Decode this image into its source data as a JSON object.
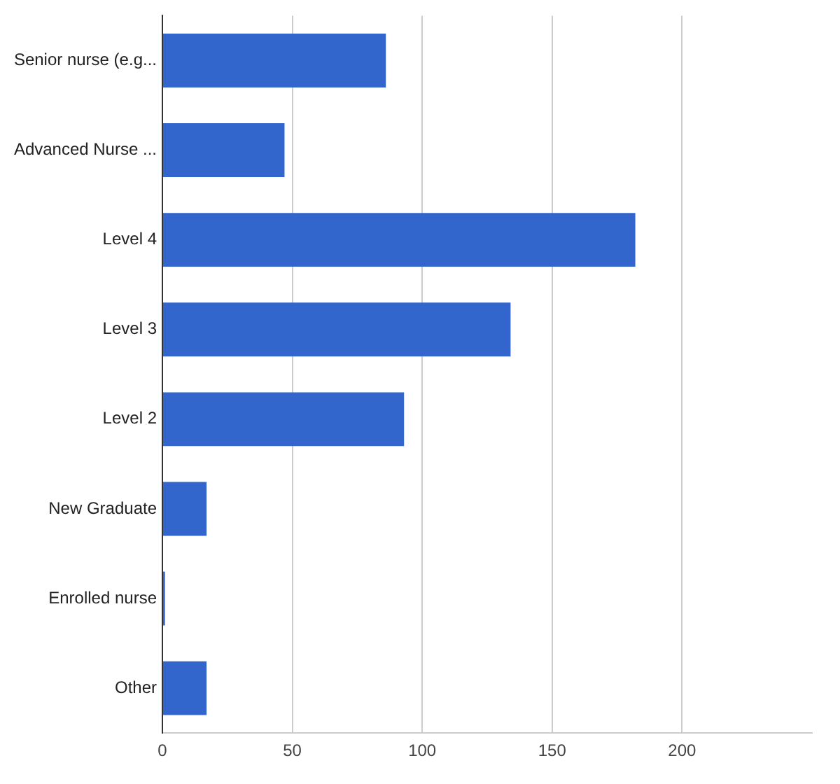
{
  "chart_data": {
    "type": "bar",
    "orientation": "horizontal",
    "categories": [
      "Senior nurse (e.g...",
      "Advanced Nurse ...",
      "Level 4",
      "Level 3",
      "Level 2",
      "New Graduate",
      "Enrolled nurse",
      "Other"
    ],
    "values": [
      86,
      47,
      182,
      134,
      93,
      17,
      1,
      17
    ],
    "color": "#3366cc",
    "xlim": [
      0,
      250
    ],
    "xticks": [
      0,
      50,
      100,
      150,
      200
    ],
    "grid": "x"
  }
}
